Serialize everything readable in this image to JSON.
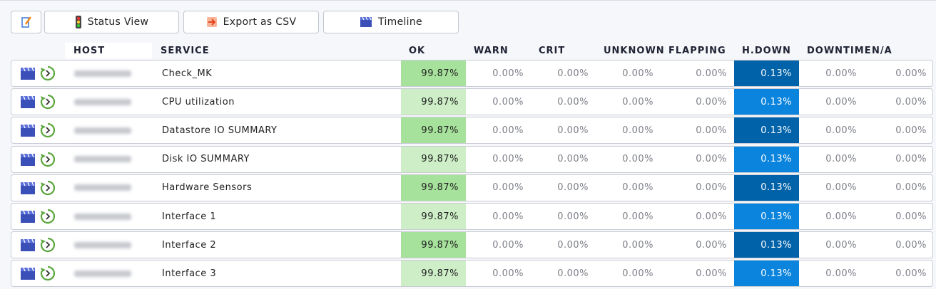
{
  "toolbar": [
    "Status View",
    "Export as CSV",
    "Timeline"
  ],
  "table": {
    "headers": [
      "HOST",
      "SERVICE",
      "OK",
      "WARN",
      "CRIT",
      "UNKNOWN",
      "FLAPPING",
      "H.DOWN",
      "DOWNTIME",
      "N/A"
    ],
    "rows": [
      [
        "Check_MK",
        "99.87%",
        "0.00%",
        "0.00%",
        "0.00%",
        "0.00%",
        "0.13%",
        "0.00%",
        "0.00%"
      ],
      [
        "CPU utilization",
        "99.87%",
        "0.00%",
        "0.00%",
        "0.00%",
        "0.00%",
        "0.13%",
        "0.00%",
        "0.00%"
      ],
      [
        "Datastore IO SUMMARY",
        "99.87%",
        "0.00%",
        "0.00%",
        "0.00%",
        "0.00%",
        "0.13%",
        "0.00%",
        "0.00%"
      ],
      [
        "Disk IO SUMMARY",
        "99.87%",
        "0.00%",
        "0.00%",
        "0.00%",
        "0.00%",
        "0.13%",
        "0.00%",
        "0.00%"
      ],
      [
        "Hardware Sensors",
        "99.87%",
        "0.00%",
        "0.00%",
        "0.00%",
        "0.00%",
        "0.13%",
        "0.00%",
        "0.00%"
      ],
      [
        "Interface 1",
        "99.87%",
        "0.00%",
        "0.00%",
        "0.00%",
        "0.00%",
        "0.13%",
        "0.00%",
        "0.00%"
      ],
      [
        "Interface 2",
        "99.87%",
        "0.00%",
        "0.00%",
        "0.00%",
        "0.00%",
        "0.13%",
        "0.00%",
        "0.00%"
      ],
      [
        "Interface 3",
        "99.87%",
        "0.00%",
        "0.00%",
        "0.00%",
        "0.00%",
        "0.13%",
        "0.00%",
        "0.00%"
      ]
    ]
  }
}
